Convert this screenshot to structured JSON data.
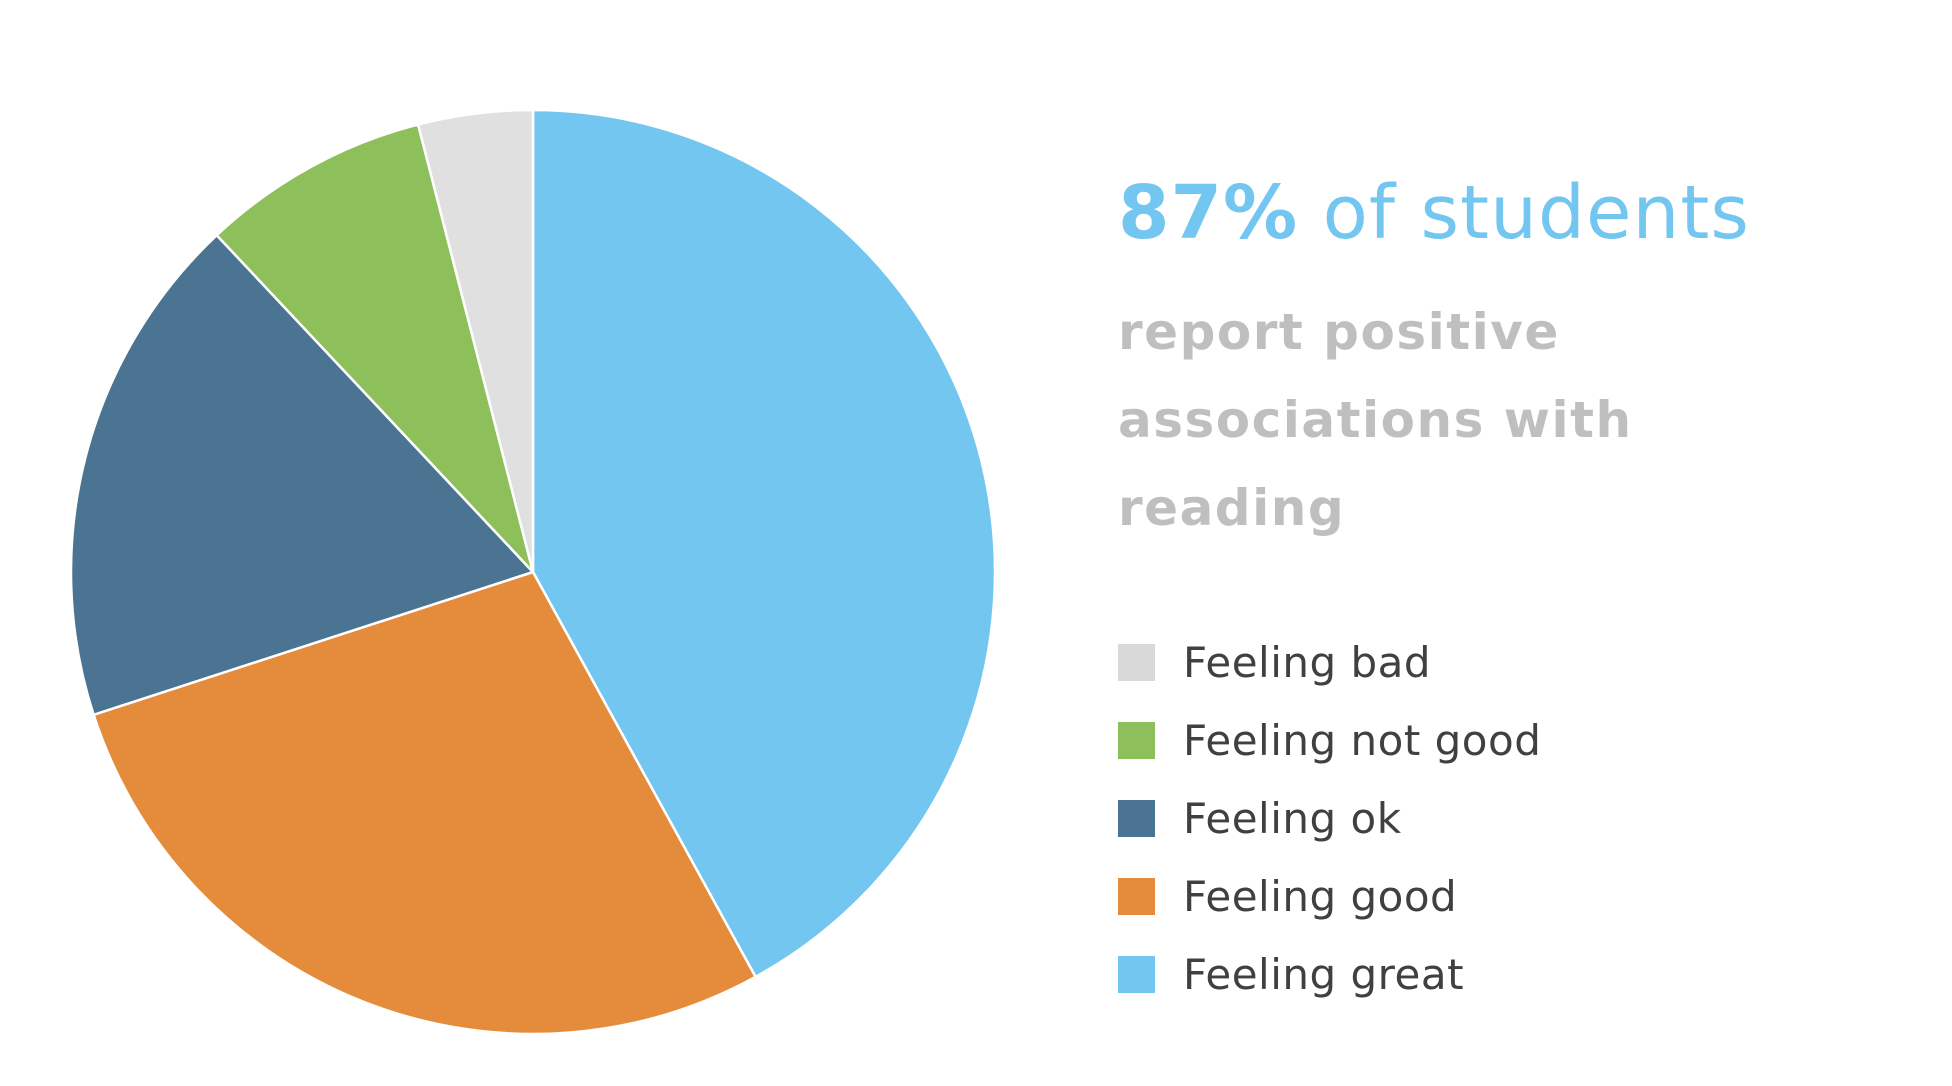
{
  "headline": {
    "percent": "87%",
    "rest": " of students"
  },
  "subheadline": {
    "line1": "report positive",
    "line2": "associations with",
    "line3": "reading"
  },
  "chart_data": {
    "type": "pie",
    "start_angle": "12 o'clock, clockwise",
    "series": [
      {
        "name": "Feeling great",
        "value": 42,
        "color": "#73c6ef"
      },
      {
        "name": "Feeling good",
        "value": 28,
        "color": "#e58b3c"
      },
      {
        "name": "Feeling ok",
        "value": 18,
        "color": "#4a7491"
      },
      {
        "name": "Feeling not good",
        "value": 8,
        "color": "#8dc05a"
      },
      {
        "name": "Feeling bad",
        "value": 4,
        "color": "#e0e0e0"
      }
    ]
  },
  "legend": {
    "items": [
      {
        "label": "Feeling bad",
        "color": "#d9d9d9"
      },
      {
        "label": "Feeling not good",
        "color": "#8dc05a"
      },
      {
        "label": "Feeling ok",
        "color": "#4a7491"
      },
      {
        "label": "Feeling good",
        "color": "#e58b3c"
      },
      {
        "label": "Feeling great",
        "color": "#73c6ef"
      }
    ]
  }
}
